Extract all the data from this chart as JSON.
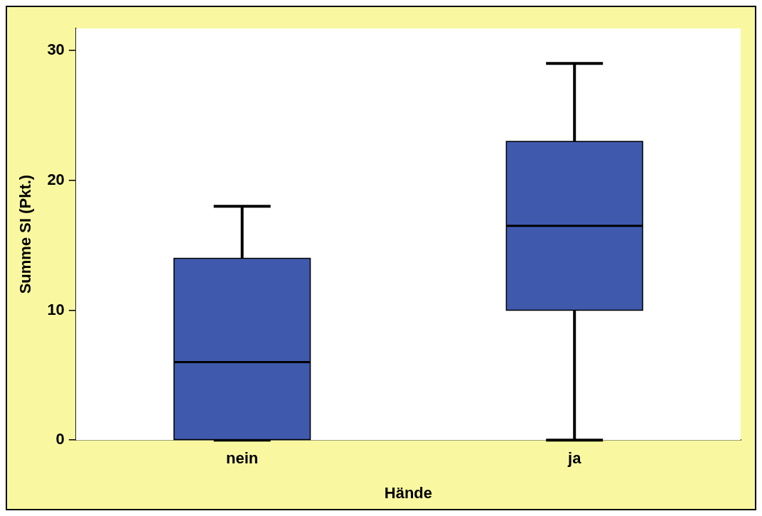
{
  "chart_data": {
    "type": "box",
    "xlabel": "Hände",
    "ylabel": "Summe SI (Pkt.)",
    "categories": [
      "nein",
      "ja"
    ],
    "color": "#3f5aad",
    "boxes": [
      {
        "low": 0,
        "q1": 0,
        "median": 6,
        "q3": 14,
        "high": 18
      },
      {
        "low": 0,
        "q1": 10,
        "median": 16.5,
        "q3": 23,
        "high": 29
      }
    ],
    "ylim": [
      0,
      31.7
    ],
    "yticks": [
      0,
      10,
      20,
      30
    ]
  }
}
